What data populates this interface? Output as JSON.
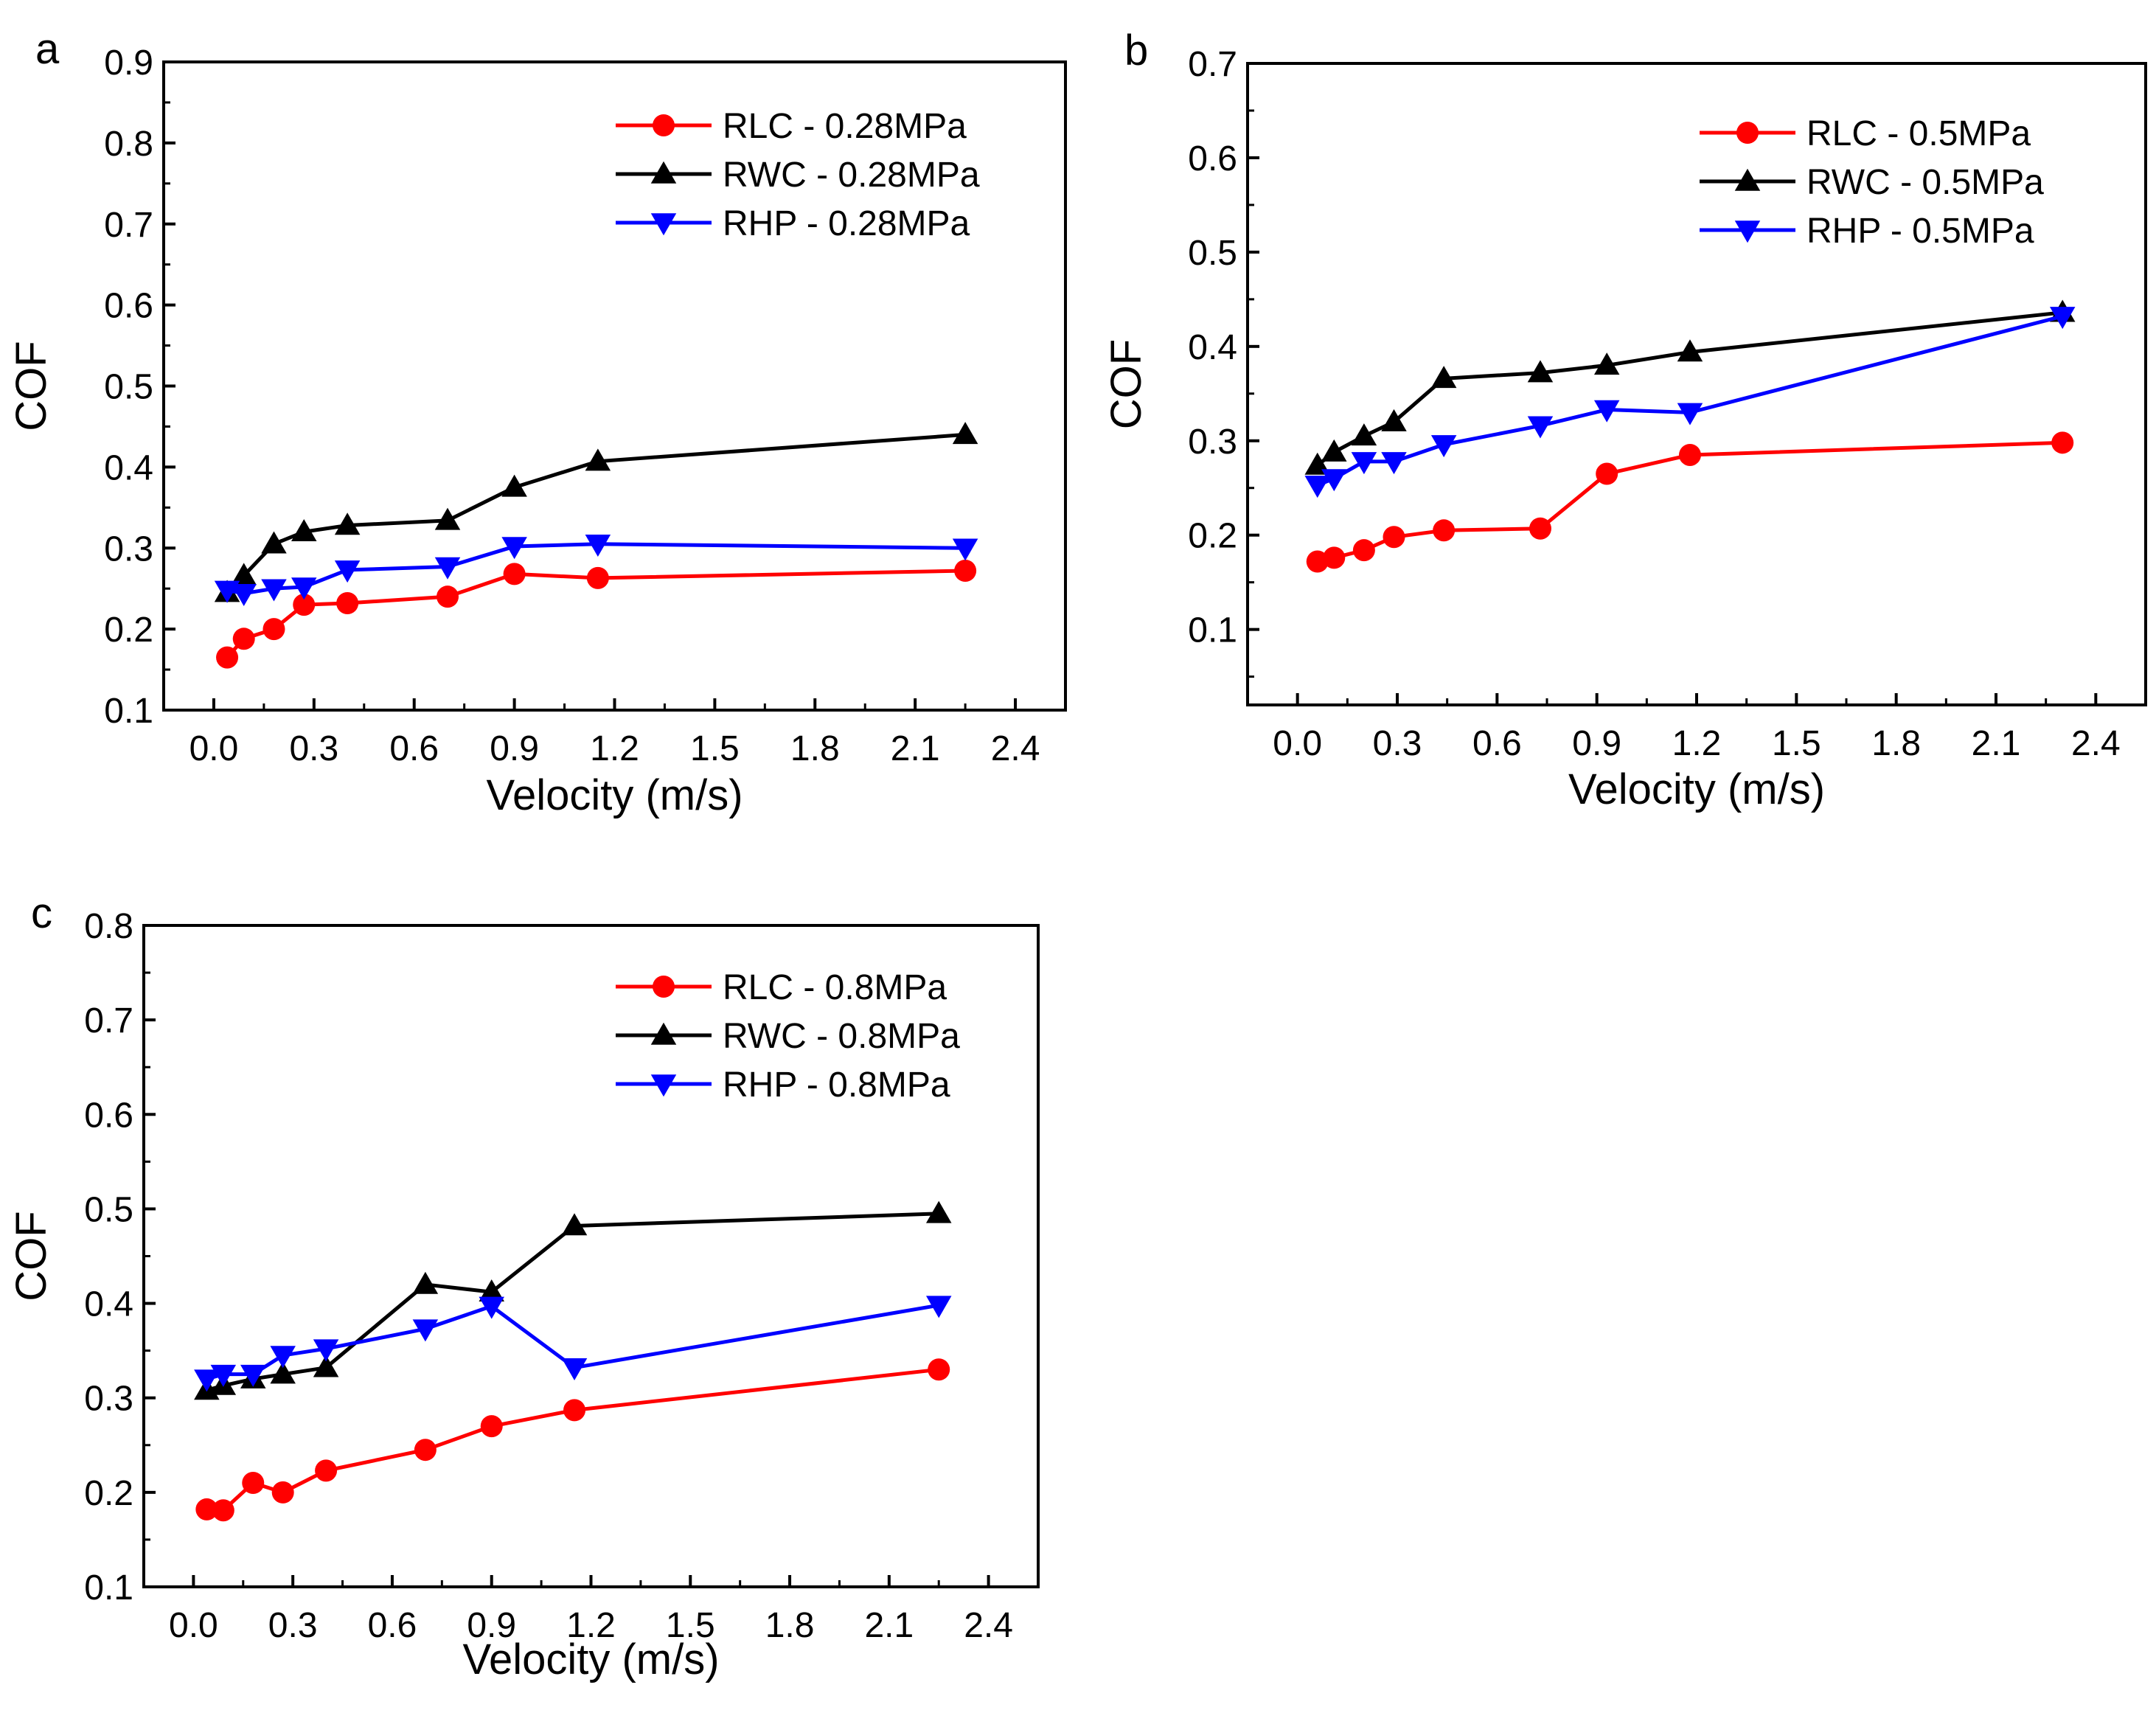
{
  "chart_data": [
    {
      "panel": "a",
      "type": "line",
      "xlabel": "Velocity (m/s)",
      "ylabel": "COF",
      "xlim": [
        -0.15,
        2.55
      ],
      "ylim": [
        0.1,
        0.9
      ],
      "xticks": [
        "0.0",
        "0.3",
        "0.6",
        "0.9",
        "1.2",
        "1.5",
        "1.8",
        "2.1",
        "2.4"
      ],
      "yticks": [
        "0.1",
        "0.2",
        "0.3",
        "0.4",
        "0.5",
        "0.6",
        "0.7",
        "0.8",
        "0.9"
      ],
      "legend_position": "top-right",
      "series": [
        {
          "name": "RLC - 0.28MPa",
          "color": "#ff0000",
          "marker": "circle",
          "x": [
            0.04,
            0.09,
            0.18,
            0.27,
            0.4,
            0.7,
            0.9,
            1.15,
            2.25
          ],
          "y": [
            0.165,
            0.188,
            0.2,
            0.23,
            0.232,
            0.24,
            0.268,
            0.263,
            0.272
          ]
        },
        {
          "name": "RWC - 0.28MPa",
          "color": "#000000",
          "marker": "triangle-up",
          "x": [
            0.04,
            0.09,
            0.18,
            0.27,
            0.4,
            0.7,
            0.9,
            1.15,
            2.25
          ],
          "y": [
            0.245,
            0.266,
            0.305,
            0.32,
            0.328,
            0.334,
            0.375,
            0.407,
            0.44
          ]
        },
        {
          "name": "RHP - 0.28MPa",
          "color": "#0000ff",
          "marker": "triangle-down",
          "x": [
            0.04,
            0.09,
            0.18,
            0.27,
            0.4,
            0.7,
            0.9,
            1.15,
            2.25
          ],
          "y": [
            0.248,
            0.244,
            0.25,
            0.252,
            0.273,
            0.277,
            0.302,
            0.305,
            0.3
          ]
        }
      ]
    },
    {
      "panel": "b",
      "type": "line",
      "xlabel": "Velocity (m/s)",
      "ylabel": "COF",
      "xlim": [
        -0.15,
        2.55
      ],
      "ylim": [
        0.02,
        0.7
      ],
      "xticks": [
        "0.0",
        "0.3",
        "0.6",
        "0.9",
        "1.2",
        "1.5",
        "1.8",
        "2.1",
        "2.4"
      ],
      "yticks": [
        "0.1",
        "0.2",
        "0.3",
        "0.4",
        "0.5",
        "0.6",
        "0.7"
      ],
      "legend_position": "top-right",
      "series": [
        {
          "name": "RLC - 0.5MPa",
          "color": "#ff0000",
          "marker": "circle",
          "x": [
            0.06,
            0.11,
            0.2,
            0.29,
            0.44,
            0.73,
            0.93,
            1.18,
            2.3
          ],
          "y": [
            0.172,
            0.176,
            0.184,
            0.198,
            0.205,
            0.207,
            0.265,
            0.285,
            0.298
          ]
        },
        {
          "name": "RWC - 0.5MPa",
          "color": "#000000",
          "marker": "triangle-up",
          "x": [
            0.06,
            0.11,
            0.2,
            0.29,
            0.44,
            0.73,
            0.93,
            1.18,
            2.3
          ],
          "y": [
            0.274,
            0.288,
            0.305,
            0.32,
            0.366,
            0.372,
            0.38,
            0.394,
            0.436
          ]
        },
        {
          "name": "RHP - 0.5MPa",
          "color": "#0000ff",
          "marker": "triangle-down",
          "x": [
            0.06,
            0.11,
            0.2,
            0.29,
            0.44,
            0.73,
            0.93,
            1.18,
            2.3
          ],
          "y": [
            0.253,
            0.26,
            0.278,
            0.278,
            0.296,
            0.316,
            0.333,
            0.33,
            0.432
          ]
        }
      ]
    },
    {
      "panel": "c",
      "type": "line",
      "xlabel": "Velocity (m/s)",
      "ylabel": "COF",
      "xlim": [
        -0.15,
        2.55
      ],
      "ylim": [
        0.1,
        0.8
      ],
      "xticks": [
        "0.0",
        "0.3",
        "0.6",
        "0.9",
        "1.2",
        "1.5",
        "1.8",
        "2.1",
        "2.4"
      ],
      "yticks": [
        "0.1",
        "0.2",
        "0.3",
        "0.4",
        "0.5",
        "0.6",
        "0.7",
        "0.8"
      ],
      "legend_position": "top-right",
      "series": [
        {
          "name": "RLC - 0.8MPa",
          "color": "#ff0000",
          "marker": "circle",
          "x": [
            0.04,
            0.09,
            0.18,
            0.27,
            0.4,
            0.7,
            0.9,
            1.15,
            2.25
          ],
          "y": [
            0.182,
            0.181,
            0.21,
            0.2,
            0.223,
            0.245,
            0.27,
            0.287,
            0.33
          ]
        },
        {
          "name": "RWC - 0.8MPa",
          "color": "#000000",
          "marker": "triangle-up",
          "x": [
            0.04,
            0.09,
            0.18,
            0.27,
            0.4,
            0.7,
            0.9,
            1.15,
            2.25
          ],
          "y": [
            0.308,
            0.313,
            0.32,
            0.325,
            0.332,
            0.42,
            0.412,
            0.482,
            0.495
          ]
        },
        {
          "name": "RHP - 0.8MPa",
          "color": "#0000ff",
          "marker": "triangle-down",
          "x": [
            0.04,
            0.09,
            0.18,
            0.27,
            0.4,
            0.7,
            0.9,
            1.15,
            2.25
          ],
          "y": [
            0.32,
            0.325,
            0.325,
            0.345,
            0.352,
            0.373,
            0.397,
            0.332,
            0.398
          ]
        }
      ]
    }
  ]
}
